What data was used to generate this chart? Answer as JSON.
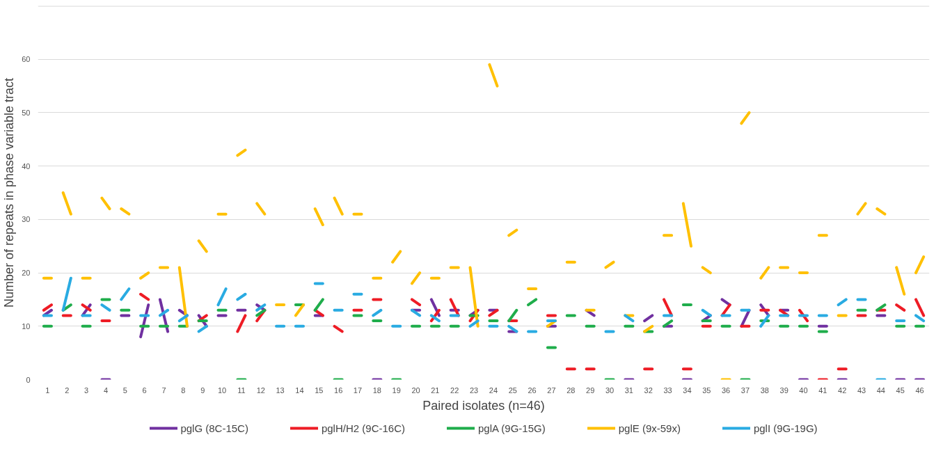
{
  "chart_data": {
    "type": "line",
    "xlabel": "Paired isolates (n=46)",
    "ylabel": "Number of repeats in phase variable tract",
    "x": [
      0.8,
      1.2,
      1.5,
      1.8,
      2.2,
      2.5,
      2.8,
      3.2,
      3.5,
      3.8,
      4.2,
      4.5,
      4.8,
      5.2,
      5.5,
      5.8,
      6.2,
      6.5,
      6.8,
      7.2,
      7.5,
      7.8,
      8.2,
      8.5,
      8.8,
      9.2,
      9.5,
      9.8,
      10.2,
      10.5,
      10.8,
      11.2,
      11.5,
      11.8,
      12.2,
      12.5,
      12.8,
      13.2,
      13.5,
      13.8,
      14.2,
      14.5,
      14.8,
      15.2,
      15.5,
      15.8,
      16.2,
      16.5,
      16.8,
      17.2,
      17.5,
      17.8,
      18.2,
      18.5,
      18.8,
      19.2,
      19.5,
      19.8,
      20.2,
      20.5,
      20.8,
      21.2,
      21.5,
      21.8,
      22.2,
      22.5,
      22.8,
      23.2,
      23.5,
      23.8,
      24.2,
      24.5,
      24.8,
      25.2,
      25.5,
      25.8,
      26.2,
      26.5,
      26.8,
      27.2,
      27.5,
      27.8,
      28.2,
      28.5,
      28.8,
      29.2,
      29.5,
      29.8,
      30.2,
      30.5,
      30.8,
      31.2,
      31.5,
      31.8,
      32.2,
      32.5,
      32.8,
      33.2,
      33.5,
      33.8,
      34.2,
      34.5,
      34.8,
      35.2,
      35.5,
      35.8,
      36.2,
      36.5,
      36.8,
      37.2,
      37.5,
      37.8,
      38.2,
      38.5,
      38.8,
      39.2,
      39.5,
      39.8,
      40.2,
      40.5,
      40.8,
      41.2,
      41.5,
      41.8,
      42.2,
      42.5,
      42.8,
      43.2,
      43.5,
      43.8,
      44.2,
      44.5,
      44.8,
      45.2,
      45.5,
      45.8,
      46.2
    ],
    "xlim": [
      0.5,
      46.5
    ],
    "xticks": [
      1,
      2,
      3,
      4,
      5,
      6,
      7,
      8,
      9,
      10,
      11,
      12,
      13,
      14,
      15,
      16,
      17,
      18,
      19,
      20,
      21,
      22,
      23,
      24,
      25,
      26,
      27,
      28,
      29,
      30,
      31,
      32,
      33,
      34,
      35,
      36,
      37,
      38,
      39,
      40,
      41,
      42,
      43,
      44,
      45,
      46
    ],
    "ylim": [
      0,
      70
    ],
    "yticks": [
      0,
      10,
      20,
      30,
      40,
      50,
      60,
      {
        "value": 70,
        "label": null
      }
    ],
    "grid": "y",
    "legend": "bottom",
    "line_style": "solid",
    "marker": "none",
    "series": [
      {
        "name": "pglG (8C-15C)",
        "color": "#7030a0",
        "values": [
          12,
          13,
          null,
          null,
          null,
          null,
          12,
          14,
          null,
          0,
          0,
          null,
          12,
          12,
          null,
          8,
          14,
          null,
          15,
          9,
          null,
          13,
          12,
          null,
          12,
          10,
          null,
          12,
          12,
          null,
          13,
          13,
          null,
          14,
          13,
          null,
          null,
          null,
          null,
          null,
          null,
          null,
          12,
          12,
          null,
          null,
          null,
          null,
          null,
          null,
          null,
          0,
          0,
          null,
          null,
          null,
          null,
          13,
          13,
          null,
          15,
          12,
          null,
          13,
          13,
          null,
          12,
          13,
          null,
          13,
          13,
          null,
          9,
          9,
          null,
          null,
          null,
          null,
          10,
          10,
          null,
          null,
          null,
          null,
          13,
          12,
          null,
          null,
          null,
          null,
          0,
          0,
          null,
          11,
          12,
          null,
          10,
          10,
          null,
          0,
          0,
          null,
          11,
          12,
          null,
          15,
          14,
          null,
          10,
          13,
          null,
          14,
          12,
          null,
          13,
          13,
          null,
          0,
          0,
          null,
          10,
          10,
          null,
          0,
          0,
          null,
          null,
          null,
          null,
          12,
          12,
          null,
          0,
          0,
          null,
          0,
          0
        ]
      },
      {
        "name": "pglH/H2 (9C-16C)",
        "color": "#ee1c25",
        "values": [
          13,
          14,
          null,
          12,
          12,
          null,
          14,
          13,
          null,
          11,
          11,
          null,
          null,
          null,
          null,
          16,
          15,
          null,
          null,
          null,
          null,
          null,
          null,
          null,
          11,
          12,
          null,
          null,
          null,
          null,
          9,
          12,
          null,
          11,
          13,
          null,
          null,
          null,
          null,
          null,
          null,
          null,
          13,
          12,
          null,
          10,
          9,
          null,
          13,
          13,
          null,
          15,
          15,
          null,
          null,
          null,
          null,
          15,
          14,
          null,
          11,
          13,
          null,
          15,
          12,
          null,
          11,
          13,
          null,
          12,
          13,
          null,
          11,
          11,
          null,
          null,
          null,
          null,
          12,
          12,
          null,
          2,
          2,
          null,
          2,
          2,
          null,
          null,
          null,
          null,
          null,
          null,
          null,
          2,
          2,
          null,
          15,
          12,
          null,
          2,
          2,
          null,
          10,
          10,
          null,
          12,
          14,
          null,
          10,
          10,
          null,
          13,
          13,
          null,
          13,
          12,
          null,
          13,
          11,
          null,
          0,
          0,
          null,
          2,
          2,
          null,
          12,
          12,
          null,
          13,
          13,
          null,
          14,
          13,
          null,
          15,
          12
        ]
      },
      {
        "name": "pglA (9G-15G)",
        "color": "#1fad4b",
        "values": [
          10,
          10,
          null,
          13,
          14,
          null,
          10,
          10,
          null,
          15,
          15,
          null,
          13,
          13,
          null,
          10,
          10,
          null,
          10,
          10,
          null,
          10,
          10,
          null,
          11,
          11,
          null,
          13,
          13,
          null,
          0,
          0,
          null,
          12,
          13,
          null,
          null,
          null,
          null,
          14,
          14,
          null,
          13,
          15,
          null,
          0,
          0,
          null,
          12,
          12,
          null,
          11,
          11,
          null,
          0,
          0,
          null,
          10,
          10,
          null,
          10,
          10,
          null,
          10,
          10,
          null,
          12,
          12,
          null,
          11,
          11,
          null,
          11,
          13,
          null,
          14,
          15,
          null,
          6,
          6,
          null,
          12,
          12,
          null,
          10,
          10,
          null,
          0,
          0,
          null,
          10,
          10,
          null,
          9,
          9,
          null,
          10,
          11,
          null,
          14,
          14,
          null,
          11,
          11,
          null,
          10,
          10,
          null,
          0,
          0,
          null,
          11,
          11,
          null,
          10,
          10,
          null,
          10,
          10,
          null,
          9,
          9,
          null,
          null,
          null,
          null,
          13,
          13,
          null,
          13,
          14,
          null,
          10,
          10,
          null,
          10,
          10
        ]
      },
      {
        "name": "pglE (9x-59x)",
        "color": "#ffc000",
        "values": [
          19,
          19,
          null,
          35,
          31,
          null,
          19,
          19,
          null,
          34,
          32,
          null,
          32,
          31,
          null,
          19,
          20,
          null,
          21,
          21,
          null,
          21,
          10,
          null,
          26,
          24,
          null,
          31,
          31,
          null,
          42,
          43,
          null,
          33,
          31,
          null,
          14,
          14,
          null,
          12,
          14,
          null,
          32,
          29,
          null,
          34,
          31,
          null,
          31,
          31,
          null,
          19,
          19,
          null,
          22,
          24,
          null,
          18,
          20,
          null,
          19,
          19,
          null,
          21,
          21,
          null,
          21,
          10,
          null,
          59,
          55,
          null,
          27,
          28,
          null,
          17,
          17,
          null,
          10,
          11,
          null,
          22,
          22,
          null,
          13,
          13,
          null,
          21,
          22,
          null,
          12,
          12,
          null,
          9,
          10,
          null,
          27,
          27,
          null,
          33,
          25,
          null,
          21,
          20,
          null,
          0,
          0,
          null,
          48,
          50,
          null,
          19,
          21,
          null,
          21,
          21,
          null,
          20,
          20,
          null,
          27,
          27,
          null,
          12,
          12,
          null,
          31,
          33,
          null,
          32,
          31,
          null,
          21,
          16,
          null,
          20,
          23
        ]
      },
      {
        "name": "pglI (9G-19G)",
        "color": "#29abe2",
        "values": [
          12,
          12,
          null,
          13,
          19,
          null,
          12,
          12,
          null,
          14,
          13,
          null,
          15,
          17,
          null,
          12,
          12,
          null,
          12,
          13,
          null,
          11,
          12,
          null,
          9,
          10,
          null,
          14,
          17,
          null,
          15,
          16,
          null,
          13,
          14,
          null,
          10,
          10,
          null,
          10,
          10,
          null,
          18,
          18,
          null,
          13,
          13,
          null,
          16,
          16,
          null,
          12,
          13,
          null,
          10,
          10,
          null,
          13,
          12,
          null,
          12,
          11,
          null,
          12,
          12,
          null,
          10,
          11,
          null,
          10,
          10,
          null,
          10,
          9,
          null,
          9,
          9,
          null,
          11,
          11,
          null,
          null,
          null,
          null,
          null,
          null,
          null,
          9,
          9,
          null,
          12,
          11,
          null,
          null,
          null,
          null,
          12,
          12,
          null,
          null,
          null,
          null,
          13,
          12,
          null,
          12,
          12,
          null,
          13,
          13,
          null,
          10,
          12,
          null,
          12,
          12,
          null,
          12,
          12,
          null,
          12,
          12,
          null,
          14,
          15,
          null,
          15,
          15,
          null,
          0,
          0,
          null,
          11,
          11,
          null,
          12,
          11
        ]
      }
    ]
  }
}
